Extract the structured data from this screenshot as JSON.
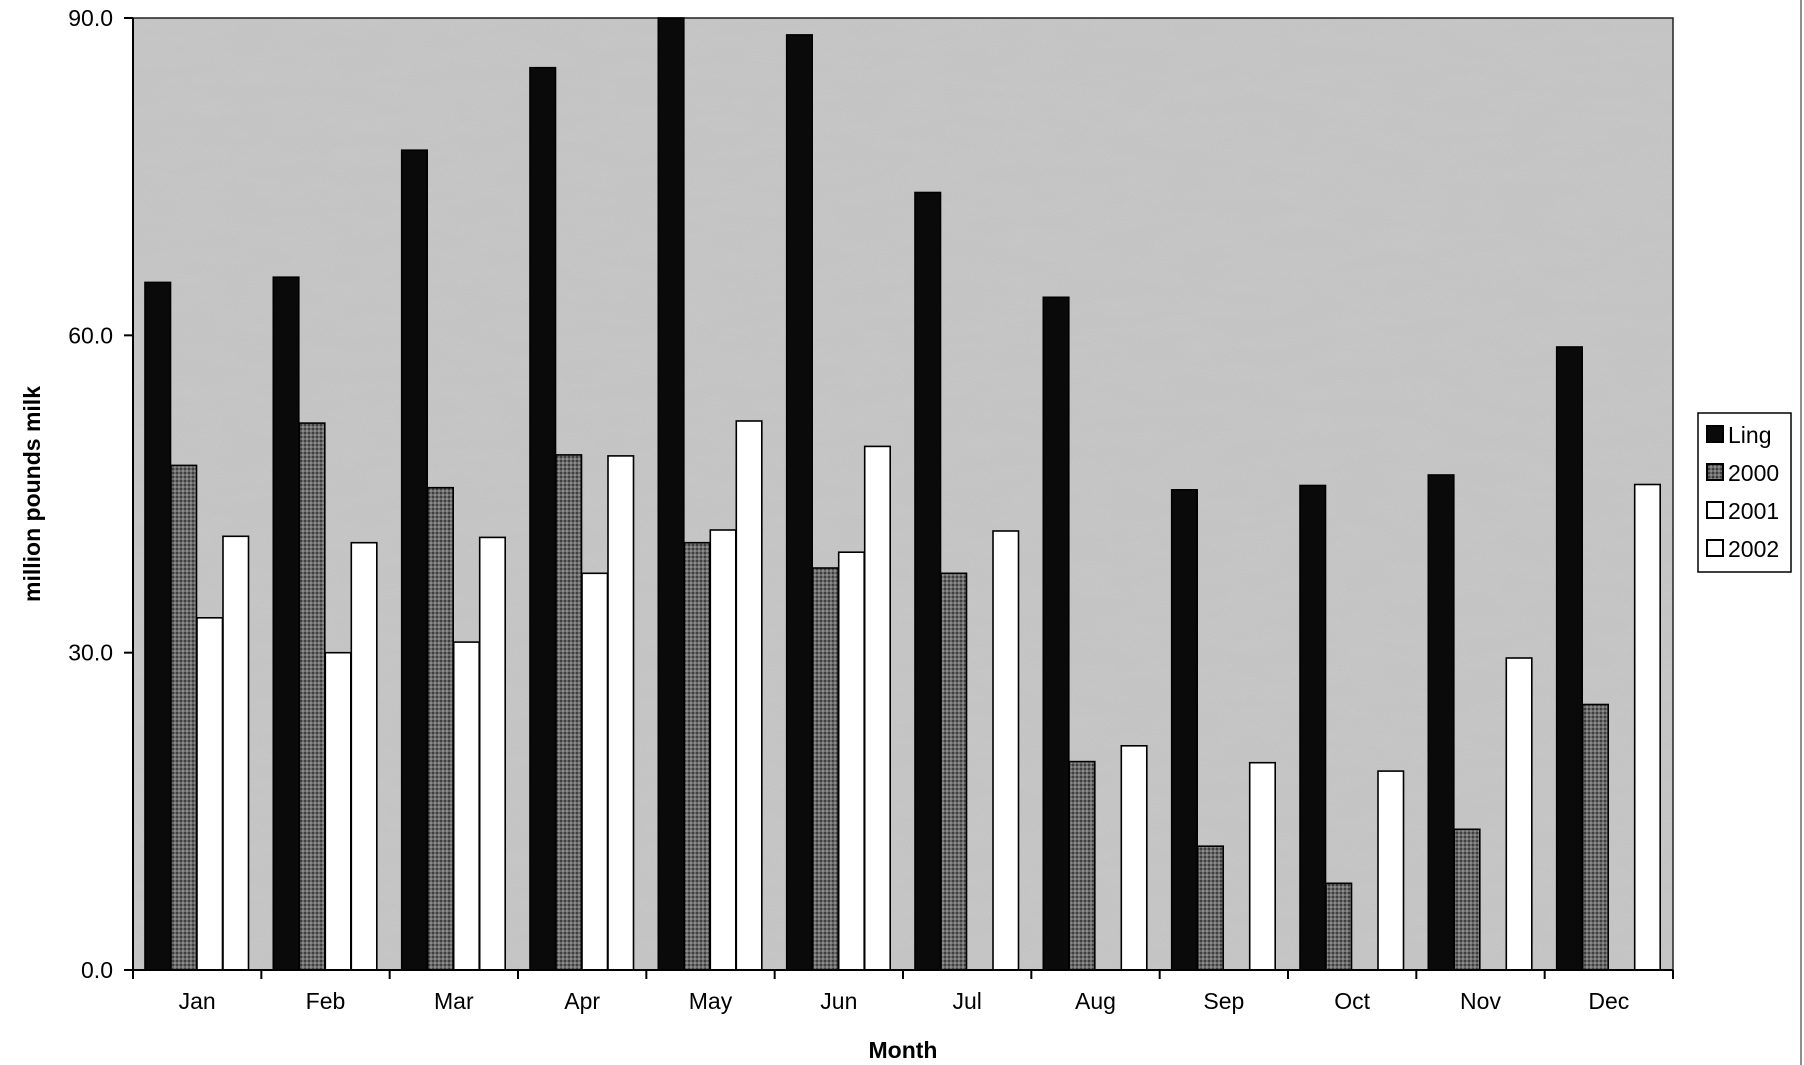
{
  "chart_data": {
    "type": "bar",
    "categories": [
      "Jan",
      "Feb",
      "Mar",
      "Apr",
      "May",
      "Jun",
      "Jul",
      "Aug",
      "Sep",
      "Oct",
      "Nov",
      "Dec"
    ],
    "series": [
      {
        "name": "Ling",
        "values": [
          65.0,
          65.5,
          77.5,
          85.3,
          90.0,
          88.4,
          73.5,
          63.6,
          45.4,
          45.8,
          46.8,
          58.9
        ],
        "color": "#0a0a0a"
      },
      {
        "name": "2000",
        "values": [
          47.7,
          51.7,
          45.6,
          48.7,
          40.4,
          38.0,
          37.5,
          19.7,
          11.7,
          8.2,
          13.3,
          25.1
        ],
        "color": "#555555"
      },
      {
        "name": "2001",
        "values": [
          33.3,
          30.0,
          31.0,
          37.5,
          41.6,
          39.5,
          null,
          null,
          null,
          null,
          null,
          null
        ],
        "color": "#ffffff"
      },
      {
        "name": "2002",
        "values": [
          41.0,
          40.4,
          40.9,
          48.6,
          51.9,
          49.5,
          41.5,
          21.2,
          19.6,
          18.8,
          29.5,
          45.9
        ],
        "color": "#ffffff"
      }
    ],
    "xlabel": "Month",
    "ylabel": "million pounds milk",
    "ylim": [
      0,
      90
    ],
    "yticks": [
      "0.0",
      "30.0",
      "60.0",
      "90.0"
    ],
    "grid": false,
    "legend": "right"
  }
}
